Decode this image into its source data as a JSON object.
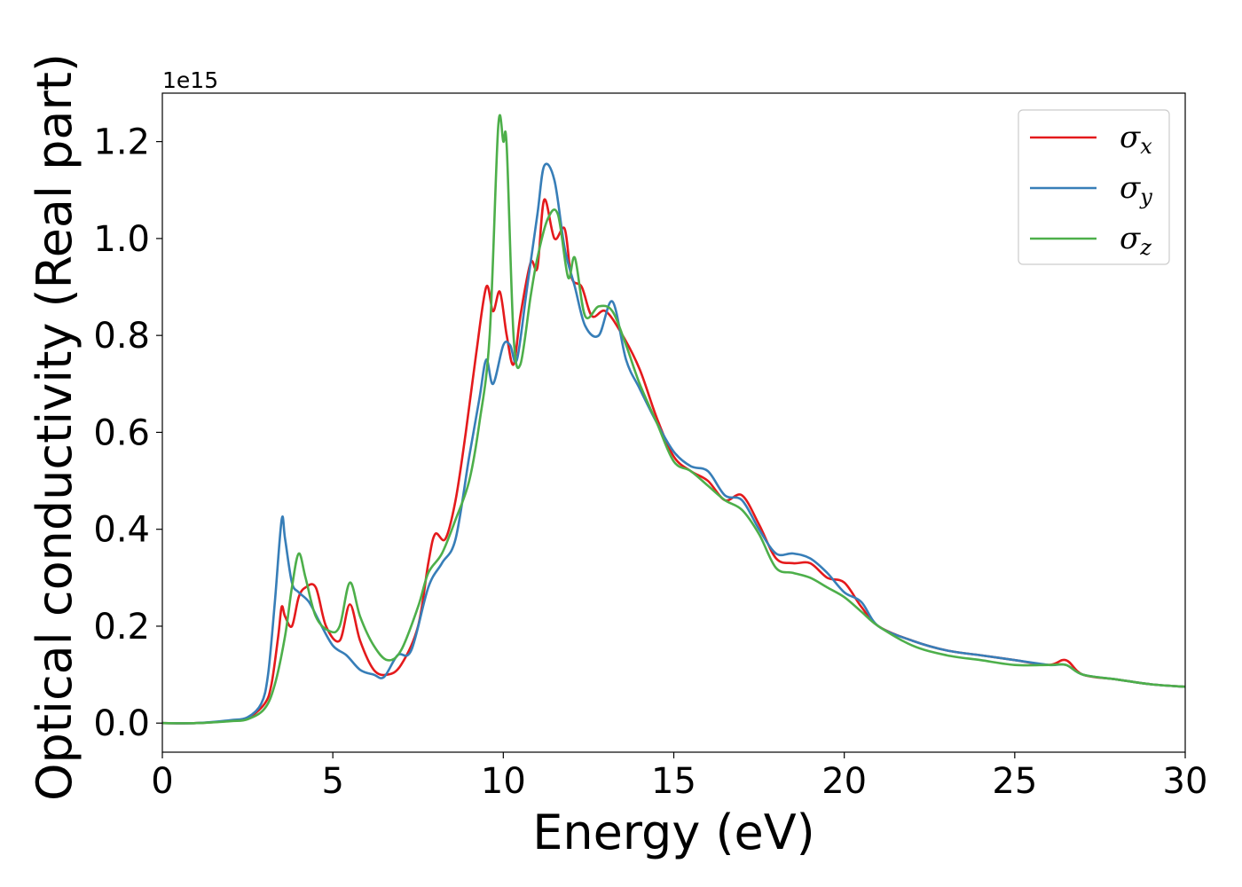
{
  "chart_data": {
    "type": "line",
    "xlabel": "Energy (eV)",
    "ylabel": "Optical conductivity (Real part)",
    "y_offset_label": "1e15",
    "xlim": [
      0,
      30
    ],
    "ylim": [
      -0.06,
      1.3
    ],
    "xticks": [
      0,
      5,
      10,
      15,
      20,
      25,
      30
    ],
    "yticks": [
      0.0,
      0.2,
      0.4,
      0.6,
      0.8,
      1.0,
      1.2
    ],
    "xtick_labels": [
      "0",
      "5",
      "10",
      "15",
      "20",
      "25",
      "30"
    ],
    "ytick_labels": [
      "0.0",
      "0.2",
      "0.4",
      "0.6",
      "0.8",
      "1.0",
      "1.2"
    ],
    "grid": false,
    "legend_position": "top-right",
    "series": [
      {
        "name": "σ",
        "subscript": "x",
        "color": "#e41a1c",
        "x": [
          0,
          1,
          2,
          2.5,
          3.0,
          3.2,
          3.4,
          3.5,
          3.6,
          3.8,
          4.0,
          4.2,
          4.5,
          4.8,
          5.2,
          5.5,
          5.8,
          6.2,
          6.6,
          7.0,
          7.5,
          7.8,
          8.0,
          8.3,
          8.6,
          8.9,
          9.2,
          9.5,
          9.7,
          9.9,
          10.1,
          10.3,
          10.5,
          10.8,
          11.0,
          11.2,
          11.5,
          11.8,
          12.0,
          12.3,
          12.6,
          13.0,
          13.5,
          14.0,
          14.5,
          15.0,
          15.5,
          16.0,
          16.5,
          17.0,
          17.5,
          18.0,
          18.5,
          19.0,
          19.5,
          20.0,
          20.5,
          21.0,
          22.0,
          23.0,
          24.0,
          25.0,
          26.0,
          26.5,
          27.0,
          28.0,
          29.0,
          30.0
        ],
        "y": [
          0.0,
          0.0,
          0.005,
          0.01,
          0.04,
          0.08,
          0.18,
          0.24,
          0.22,
          0.2,
          0.26,
          0.28,
          0.28,
          0.2,
          0.17,
          0.245,
          0.17,
          0.11,
          0.1,
          0.12,
          0.2,
          0.33,
          0.39,
          0.38,
          0.46,
          0.6,
          0.76,
          0.9,
          0.85,
          0.89,
          0.8,
          0.74,
          0.84,
          0.95,
          0.94,
          1.08,
          1.0,
          1.02,
          0.92,
          0.9,
          0.84,
          0.85,
          0.8,
          0.73,
          0.63,
          0.55,
          0.52,
          0.5,
          0.46,
          0.47,
          0.41,
          0.34,
          0.33,
          0.33,
          0.3,
          0.29,
          0.24,
          0.2,
          0.17,
          0.15,
          0.14,
          0.13,
          0.12,
          0.13,
          0.1,
          0.09,
          0.08,
          0.075
        ]
      },
      {
        "name": "σ",
        "subscript": "y",
        "color": "#377eb8",
        "x": [
          0,
          1,
          2,
          2.5,
          2.9,
          3.1,
          3.3,
          3.5,
          3.6,
          3.8,
          4.0,
          4.3,
          4.6,
          5.0,
          5.4,
          5.8,
          6.2,
          6.5,
          6.9,
          7.3,
          7.8,
          8.2,
          8.6,
          9.0,
          9.3,
          9.5,
          9.7,
          10.0,
          10.2,
          10.4,
          10.7,
          11.0,
          11.2,
          11.5,
          11.8,
          12.1,
          12.4,
          12.8,
          13.2,
          13.6,
          14.0,
          14.5,
          15.0,
          15.5,
          16.0,
          16.5,
          17.0,
          17.5,
          18.0,
          18.5,
          19.0,
          19.5,
          20.0,
          20.5,
          21.0,
          22.0,
          23.0,
          24.0,
          25.0,
          26.0,
          26.5,
          27.0,
          28.0,
          29.0,
          30.0
        ],
        "y": [
          0.0,
          0.0,
          0.006,
          0.012,
          0.04,
          0.1,
          0.25,
          0.42,
          0.38,
          0.29,
          0.27,
          0.25,
          0.21,
          0.16,
          0.14,
          0.11,
          0.1,
          0.095,
          0.14,
          0.15,
          0.28,
          0.33,
          0.38,
          0.55,
          0.67,
          0.75,
          0.7,
          0.78,
          0.78,
          0.75,
          0.9,
          1.05,
          1.15,
          1.12,
          0.98,
          0.9,
          0.82,
          0.8,
          0.87,
          0.75,
          0.69,
          0.62,
          0.56,
          0.53,
          0.52,
          0.47,
          0.46,
          0.4,
          0.35,
          0.35,
          0.34,
          0.31,
          0.27,
          0.25,
          0.2,
          0.17,
          0.15,
          0.14,
          0.13,
          0.12,
          0.12,
          0.1,
          0.09,
          0.08,
          0.075
        ]
      },
      {
        "name": "σ",
        "subscript": "z",
        "color": "#4daf4a",
        "x": [
          0,
          1,
          2,
          2.5,
          3.0,
          3.3,
          3.6,
          3.8,
          4.0,
          4.2,
          4.5,
          4.9,
          5.2,
          5.5,
          5.8,
          6.2,
          6.6,
          7.0,
          7.5,
          7.8,
          8.2,
          8.6,
          9.0,
          9.3,
          9.6,
          9.85,
          10.0,
          10.1,
          10.3,
          10.5,
          10.8,
          11.0,
          11.3,
          11.6,
          11.9,
          12.1,
          12.4,
          12.8,
          13.2,
          13.6,
          14.0,
          14.5,
          15.0,
          15.5,
          16.0,
          16.5,
          17.0,
          17.5,
          18.0,
          18.5,
          19.0,
          19.5,
          20.0,
          20.5,
          21.0,
          22.0,
          23.0,
          24.0,
          25.0,
          26.0,
          26.5,
          27.0,
          28.0,
          29.0,
          30.0
        ],
        "y": [
          0.0,
          0.0,
          0.004,
          0.008,
          0.03,
          0.08,
          0.18,
          0.28,
          0.35,
          0.3,
          0.22,
          0.19,
          0.2,
          0.29,
          0.22,
          0.16,
          0.13,
          0.15,
          0.24,
          0.31,
          0.35,
          0.42,
          0.5,
          0.62,
          0.8,
          1.23,
          1.2,
          1.19,
          0.8,
          0.74,
          0.88,
          0.96,
          1.04,
          1.05,
          0.92,
          0.96,
          0.84,
          0.86,
          0.85,
          0.78,
          0.7,
          0.62,
          0.54,
          0.52,
          0.49,
          0.46,
          0.44,
          0.39,
          0.32,
          0.31,
          0.3,
          0.28,
          0.26,
          0.23,
          0.2,
          0.16,
          0.14,
          0.13,
          0.12,
          0.12,
          0.12,
          0.1,
          0.09,
          0.08,
          0.075
        ]
      }
    ]
  }
}
